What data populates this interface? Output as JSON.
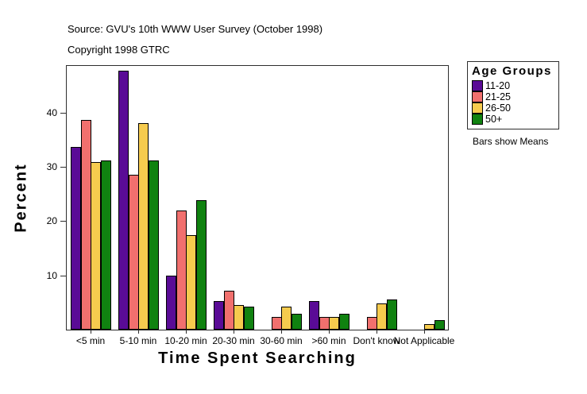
{
  "header": {
    "source_line": "Source: GVU's 10th WWW User Survey (October 1998)",
    "copyright_line": "Copyright 1998 GTRC"
  },
  "legend": {
    "title": "Age Groups",
    "note": "Bars show Means",
    "items": [
      {
        "label": "11-20",
        "color": "#5a0b96"
      },
      {
        "label": "21-25",
        "color": "#f1706e"
      },
      {
        "label": "26-50",
        "color": "#f6cb4e"
      },
      {
        "label": "50+",
        "color": "#108210"
      }
    ]
  },
  "chart_data": {
    "type": "bar",
    "title": "",
    "xlabel": "Time Spent Searching",
    "ylabel": "Percent",
    "categories": [
      "<5 min",
      "5-10 min",
      "10-20 min",
      "20-30 min",
      "30-60 min",
      ">60 min",
      "Don't know",
      "Not Applicable"
    ],
    "series": [
      {
        "name": "11-20",
        "color": "#5a0b96",
        "values": [
          33.4,
          47.5,
          9.7,
          5.0,
          0,
          5.0,
          0,
          0
        ]
      },
      {
        "name": "21-25",
        "color": "#f1706e",
        "values": [
          38.4,
          28.3,
          21.6,
          6.9,
          2.0,
          2.0,
          2.0,
          0
        ]
      },
      {
        "name": "26-50",
        "color": "#f6cb4e",
        "values": [
          30.6,
          37.8,
          17.1,
          4.3,
          4.0,
          2.1,
          4.6,
          0.7
        ]
      },
      {
        "name": "50+",
        "color": "#108210",
        "values": [
          30.9,
          30.9,
          23.6,
          4.0,
          2.7,
          2.7,
          5.2,
          1.5
        ]
      }
    ],
    "ylim": [
      0,
      48.6
    ],
    "yticks": [
      10,
      20,
      30,
      40
    ],
    "grid": false,
    "legend_position": "right",
    "annotation": "Bars show Means"
  }
}
